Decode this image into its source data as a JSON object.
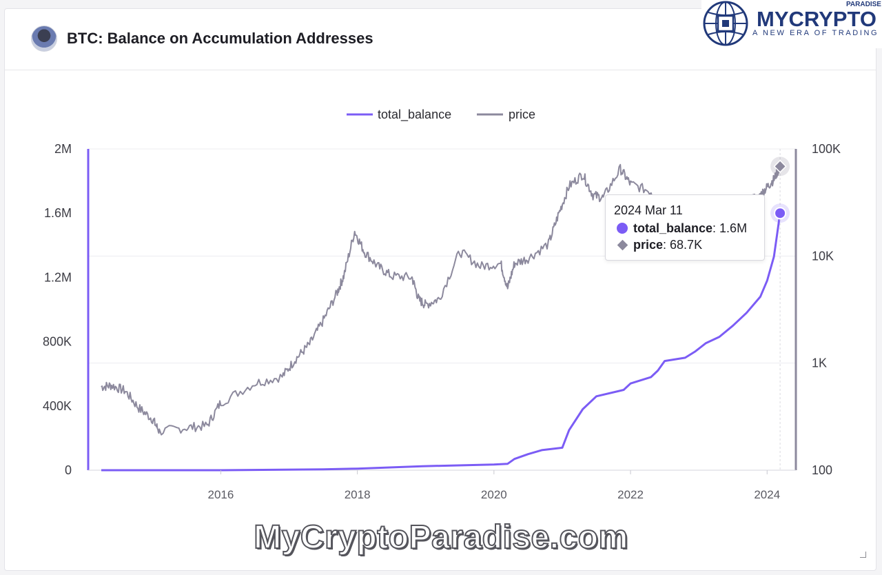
{
  "header": {
    "title": "BTC: Balance on Accumulation Addresses"
  },
  "brand": {
    "name": "MYCRYPTO",
    "super": "PARADISE",
    "tagline": "A NEW ERA OF TRADING"
  },
  "watermark": "MyCryptoParadise.com",
  "tooltip": {
    "date": "2024 Mar 11",
    "rows": [
      {
        "label": "total_balance",
        "value": ": 1.6M"
      },
      {
        "label": "price",
        "value": ": 68.7K"
      }
    ]
  },
  "colors": {
    "total_balance": "#7b5cf5",
    "price": "#8c899d",
    "grid": "#ececf1",
    "axis_text": "#3c3c44"
  },
  "chart_data": {
    "type": "line",
    "legend": [
      "total_balance",
      "price"
    ],
    "legend_position": "top-center",
    "x_ticks": [
      "2016",
      "2018",
      "2020",
      "2022",
      "2024"
    ],
    "x_tick_values": [
      2016,
      2018,
      2020,
      2022,
      2024
    ],
    "x_range": [
      2014.25,
      2024.3
    ],
    "y_left_ticks": [
      "0",
      "400K",
      "800K",
      "1.2M",
      "1.6M",
      "2M"
    ],
    "y_left_range": [
      0,
      2000000
    ],
    "y_right_ticks": [
      "100",
      "1K",
      "10K",
      "100K"
    ],
    "y_right_range": [
      100,
      100000
    ],
    "y_right_scale": "log",
    "grid": true,
    "series": [
      {
        "name": "total_balance",
        "axis": "left",
        "x": [
          2014.25,
          2016.0,
          2017.5,
          2018.0,
          2018.95,
          2020.0,
          2020.2,
          2020.3,
          2020.5,
          2020.7,
          2021.0,
          2021.1,
          2021.3,
          2021.5,
          2021.9,
          2022.0,
          2022.3,
          2022.4,
          2022.5,
          2022.8,
          2022.95,
          2023.1,
          2023.3,
          2023.5,
          2023.7,
          2023.9,
          2024.0,
          2024.1,
          2024.19
        ],
        "y": [
          0,
          0,
          5000,
          10000,
          25000,
          35000,
          40000,
          70000,
          100000,
          125000,
          140000,
          250000,
          380000,
          460000,
          500000,
          540000,
          580000,
          620000,
          680000,
          700000,
          740000,
          790000,
          830000,
          900000,
          980000,
          1080000,
          1180000,
          1330000,
          1600000
        ]
      },
      {
        "name": "price",
        "axis": "right",
        "x": [
          2014.25,
          2014.4,
          2014.6,
          2014.8,
          2015.0,
          2015.1,
          2015.5,
          2015.8,
          2016.0,
          2016.5,
          2016.9,
          2017.1,
          2017.3,
          2017.5,
          2017.7,
          2017.8,
          2017.96,
          2018.1,
          2018.3,
          2018.5,
          2018.8,
          2018.9,
          2019.0,
          2019.2,
          2019.5,
          2019.8,
          2020.1,
          2020.2,
          2020.3,
          2020.5,
          2020.8,
          2020.95,
          2021.1,
          2021.3,
          2021.45,
          2021.6,
          2021.85,
          2022.0,
          2022.3,
          2022.5,
          2022.9,
          2023.2,
          2023.5,
          2023.9,
          2024.0,
          2024.1,
          2024.19
        ],
        "y": [
          600,
          620,
          550,
          380,
          300,
          230,
          250,
          260,
          430,
          650,
          750,
          1100,
          1500,
          2500,
          4500,
          6500,
          17000,
          11000,
          8000,
          6500,
          6300,
          3900,
          3500,
          4000,
          11000,
          8000,
          8500,
          5000,
          8500,
          9500,
          13000,
          25000,
          45000,
          58000,
          37000,
          35000,
          65000,
          47000,
          40000,
          22000,
          17000,
          23000,
          30000,
          37000,
          44000,
          52000,
          68700
        ]
      }
    ]
  }
}
